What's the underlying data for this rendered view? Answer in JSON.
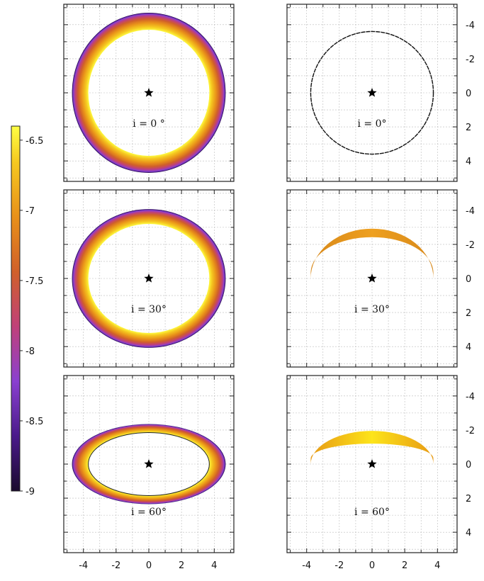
{
  "chart_data": {
    "type": "heatmap",
    "colorbar": {
      "ticks": [
        -6.5,
        -7,
        -7.5,
        -8,
        -8.5,
        -9
      ],
      "range": [
        -9,
        -6.4
      ],
      "tick_labels": [
        "-6.5",
        "-7",
        "-7.5",
        "-8",
        "-8.5",
        "-9"
      ]
    },
    "axes": {
      "xlim": [
        -5.2,
        5.2
      ],
      "ylim": [
        -5.2,
        5.2
      ],
      "x_ticks": [
        -4,
        -2,
        0,
        2,
        4
      ],
      "x_tick_labels": [
        "-4",
        "-2",
        "0",
        "2",
        "4"
      ],
      "y_ticks": [
        -4,
        -2,
        0,
        2,
        4
      ],
      "y_tick_labels": [
        "-4",
        "-2",
        "0",
        "2",
        "4"
      ],
      "y_axis_position": "right",
      "grid": true
    },
    "star_position": [
      0,
      0
    ],
    "panels": [
      {
        "column": "left",
        "row": 0,
        "label": "i = 0 °",
        "inclination_deg": 0,
        "ring_inner": 3.7,
        "ring_outer": 4.7,
        "visible": "full"
      },
      {
        "column": "right",
        "row": 0,
        "label": "i = 0°",
        "inclination_deg": 0,
        "radius": 3.75,
        "visible": "outline"
      },
      {
        "column": "left",
        "row": 1,
        "label": "i = 30°",
        "inclination_deg": 30,
        "ring_inner": 3.7,
        "ring_outer": 4.7,
        "visible": "full"
      },
      {
        "column": "right",
        "row": 1,
        "label": "i = 30°",
        "inclination_deg": 30,
        "ring_inner": 3.75,
        "ring_outer": 3.85,
        "visible": "upper-arc"
      },
      {
        "column": "left",
        "row": 2,
        "label": "i = 60°",
        "inclination_deg": 60,
        "ring_inner": 3.7,
        "ring_outer": 4.7,
        "visible": "full"
      },
      {
        "column": "right",
        "row": 2,
        "label": "i = 60°",
        "inclination_deg": 60,
        "ring_inner": 3.75,
        "ring_outer": 3.85,
        "visible": "upper-arc"
      }
    ]
  }
}
